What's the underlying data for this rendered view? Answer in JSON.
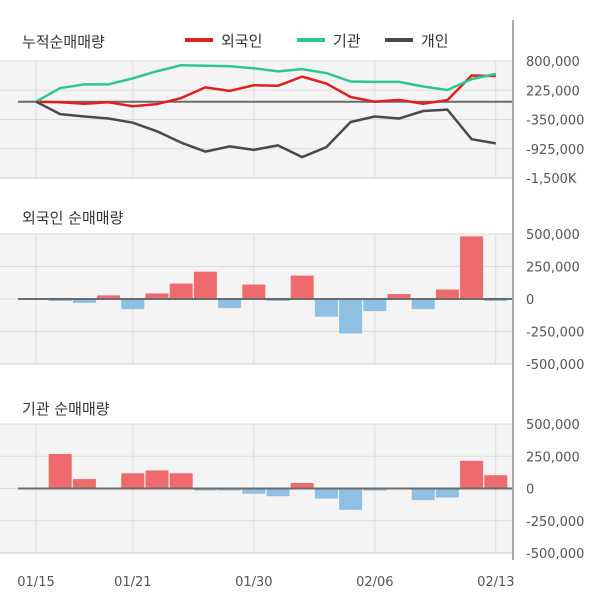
{
  "chart_data": [
    {
      "type": "line",
      "title": "누적순매매량",
      "x": [
        "01/15",
        "",
        "",
        "",
        "01/21",
        "",
        "",
        "",
        "",
        "01/30",
        "",
        "",
        "",
        "",
        "02/06",
        "",
        "",
        "",
        "",
        "02/13"
      ],
      "ylim": [
        -1500000,
        800000
      ],
      "yticks": [
        800000,
        225000,
        -350000,
        -925000,
        -1500000
      ],
      "ytick_labels": [
        "800,000",
        "225,000",
        "-350,000",
        "-925,000",
        "-1,500K"
      ],
      "legend": "top",
      "series": [
        {
          "name": "외국인",
          "color": "#e0201f",
          "values": [
            0,
            -10000,
            -40000,
            -12000,
            -90000,
            -47000,
            72000,
            282000,
            212000,
            323000,
            313000,
            493000,
            357000,
            92000,
            -1000,
            37000,
            -41000,
            32000,
            514000,
            504000
          ]
        },
        {
          "name": "기관",
          "color": "#2ec88f",
          "values": [
            0,
            268000,
            341000,
            341000,
            459000,
            599000,
            717000,
            707000,
            697000,
            657000,
            597000,
            640000,
            562000,
            397000,
            389000,
            389000,
            299000,
            229000,
            444000,
            547000
          ]
        },
        {
          "name": "개인",
          "color": "#4a4a4a",
          "values": [
            0,
            -244000,
            -291000,
            -331000,
            -413000,
            -582000,
            -805000,
            -981000,
            -879000,
            -947000,
            -859000,
            -1089000,
            -893000,
            -399000,
            -291000,
            -331000,
            -183000,
            -156000,
            -737000,
            -819000
          ]
        }
      ]
    },
    {
      "type": "bar",
      "title": "외국인 순매매량",
      "ylim": [
        -500000,
        500000
      ],
      "yticks": [
        500000,
        250000,
        0,
        -250000,
        -500000
      ],
      "ytick_labels": [
        "500,000",
        "250,000",
        "0",
        "-250,000",
        "-500,000"
      ],
      "values": [
        0,
        -10000,
        -30000,
        28000,
        -78000,
        43000,
        119000,
        210000,
        -70000,
        111000,
        -10000,
        180000,
        -136000,
        -265000,
        -93000,
        38000,
        -78000,
        73000,
        482000,
        -10000
      ]
    },
    {
      "type": "bar",
      "title": "기관 순매매량",
      "ylim": [
        -500000,
        500000
      ],
      "yticks": [
        500000,
        250000,
        0,
        -250000,
        -500000
      ],
      "ytick_labels": [
        "500,000",
        "250,000",
        "0",
        "-250,000",
        "-500,000"
      ],
      "values": [
        0,
        268000,
        73000,
        0,
        118000,
        140000,
        118000,
        -10000,
        -10000,
        -40000,
        -60000,
        43000,
        -78000,
        -165000,
        -8000,
        0,
        -90000,
        -70000,
        215000,
        103000
      ]
    }
  ],
  "x_labels": [
    {
      "i": 0,
      "label": "01/15"
    },
    {
      "i": 4,
      "label": "01/21"
    },
    {
      "i": 9,
      "label": "01/30"
    },
    {
      "i": 14,
      "label": "02/06"
    },
    {
      "i": 19,
      "label": "02/13"
    }
  ],
  "colors": {
    "positive": "#ee6a6c",
    "negative": "#8fbfe3",
    "zero": "#6b6b6b",
    "grid": "#dddddd",
    "plot_bg": "#f4f4f4"
  }
}
